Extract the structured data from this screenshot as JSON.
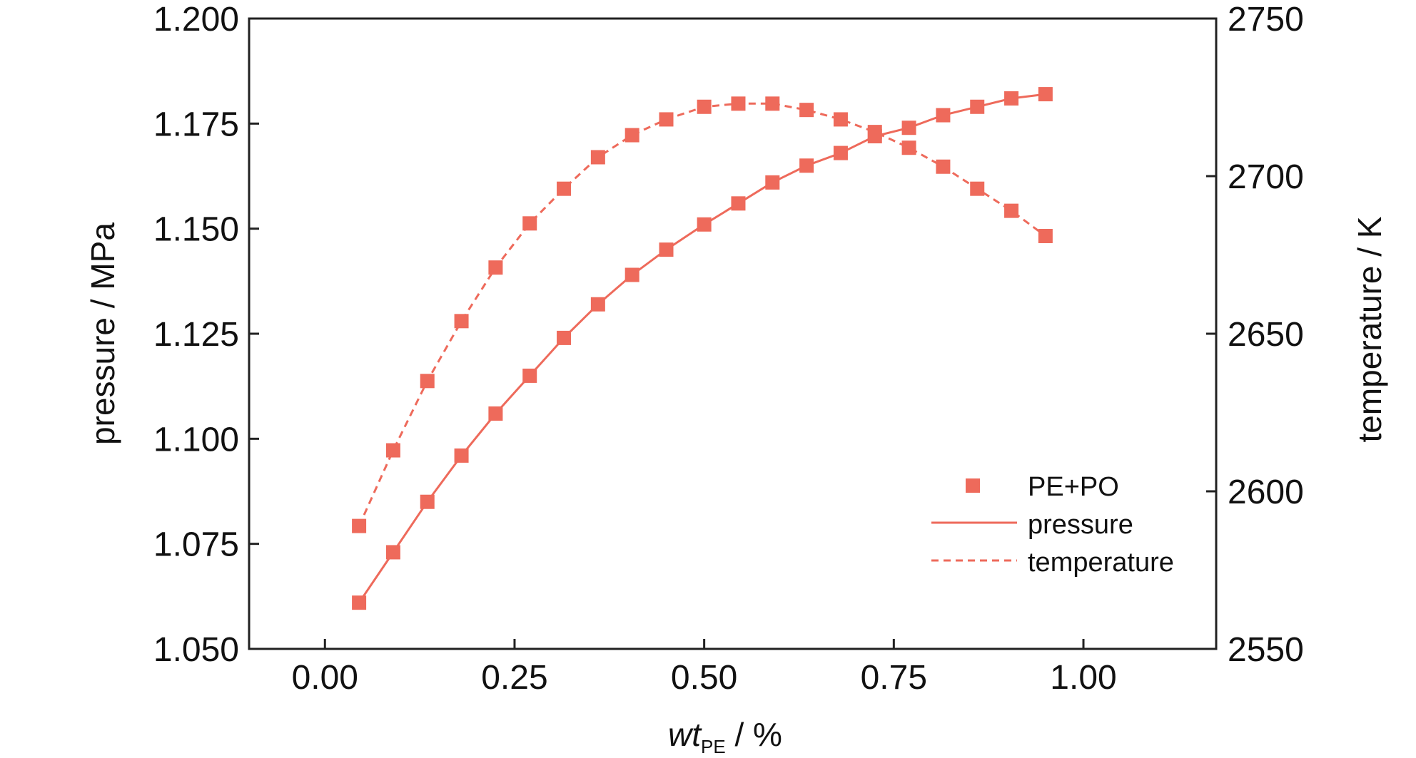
{
  "chart_data": {
    "type": "line",
    "xlabel": {
      "main": "wt",
      "sub": "PE",
      "unit": " / %"
    },
    "ylabel_left": "pressure / MPa",
    "ylabel_right": "temperature / K",
    "xlim": [
      -0.1,
      1.175
    ],
    "ylim_left": [
      1.05,
      1.2
    ],
    "ylim_right": [
      2550,
      2750
    ],
    "xticks": [
      0.0,
      0.25,
      0.5,
      0.75,
      1.0
    ],
    "xtick_labels": [
      "0.00",
      "0.25",
      "0.50",
      "0.75",
      "1.00"
    ],
    "yticks_left": [
      1.05,
      1.075,
      1.1,
      1.125,
      1.15,
      1.175,
      1.2
    ],
    "ytick_labels_left": [
      "1.050",
      "1.075",
      "1.100",
      "1.125",
      "1.150",
      "1.175",
      "1.200"
    ],
    "yticks_right": [
      2550,
      2600,
      2650,
      2700,
      2750
    ],
    "ytick_labels_right": [
      "2550",
      "2600",
      "2650",
      "2700",
      "2750"
    ],
    "grid": false,
    "legend": {
      "position": "bottom-right",
      "entries": [
        {
          "label": "PE+PO",
          "style": "marker"
        },
        {
          "label": "pressure",
          "style": "solid"
        },
        {
          "label": "temperature",
          "style": "dashed"
        }
      ]
    },
    "color": "#ee6a5b",
    "x": [
      0.045,
      0.09,
      0.135,
      0.18,
      0.225,
      0.27,
      0.315,
      0.36,
      0.405,
      0.45,
      0.5,
      0.545,
      0.59,
      0.635,
      0.68,
      0.725,
      0.77,
      0.815,
      0.86,
      0.905,
      0.95
    ],
    "series": [
      {
        "name": "pressure",
        "axis": "left",
        "dash": "solid",
        "values": [
          1.061,
          1.073,
          1.085,
          1.096,
          1.106,
          1.115,
          1.124,
          1.132,
          1.139,
          1.145,
          1.151,
          1.156,
          1.161,
          1.165,
          1.168,
          1.172,
          1.174,
          1.177,
          1.179,
          1.181,
          1.182
        ]
      },
      {
        "name": "temperature",
        "axis": "right",
        "dash": "dashed",
        "values": [
          2589,
          2613,
          2635,
          2654,
          2671,
          2685,
          2696,
          2706,
          2713,
          2718,
          2722,
          2723,
          2723,
          2721,
          2718,
          2714,
          2709,
          2703,
          2696,
          2689,
          2681
        ]
      }
    ]
  }
}
